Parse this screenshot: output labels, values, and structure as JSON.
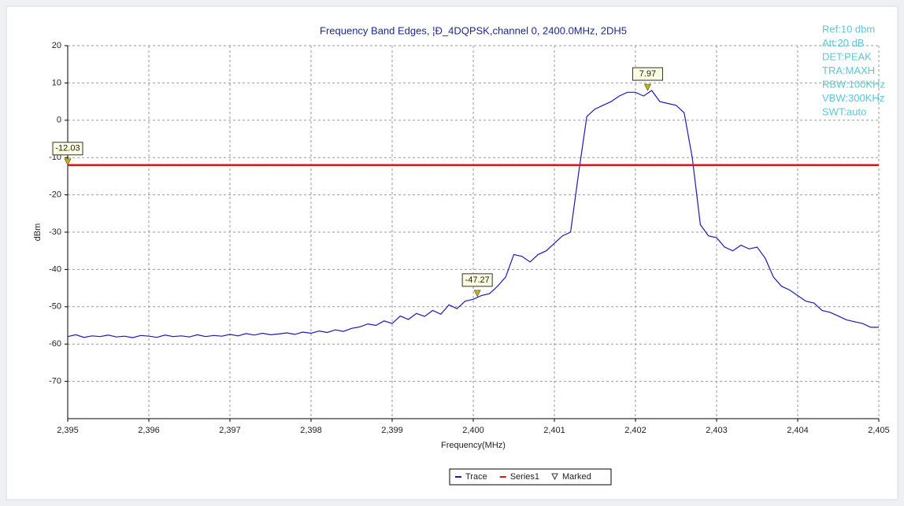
{
  "chart_data": {
    "type": "line",
    "title": "Frequency Band Edges, ¦Ð_4DQPSK,channel 0, 2400.0MHz, 2DH5",
    "x_label": "Frequency(MHz)",
    "y_label": "dBm",
    "annotations": [
      "Ref:10 dbm",
      "Att:20 dB",
      "DET:PEAK",
      "TRA:MAXH",
      "RBW:100KHz",
      "VBW:300KHz",
      "SWT:auto"
    ],
    "xlim": [
      2395,
      2405
    ],
    "ylim": [
      -80,
      20
    ],
    "xticks": [
      {
        "value": 2395,
        "label": "2,395"
      },
      {
        "value": 2396,
        "label": "2,396"
      },
      {
        "value": 2397,
        "label": "2,397"
      },
      {
        "value": 2398,
        "label": "2,398"
      },
      {
        "value": 2399,
        "label": "2,399"
      },
      {
        "value": 2400,
        "label": "2,400"
      },
      {
        "value": 2401,
        "label": "2,401"
      },
      {
        "value": 2402,
        "label": "2,402"
      },
      {
        "value": 2403,
        "label": "2,403"
      },
      {
        "value": 2404,
        "label": "2,404"
      },
      {
        "value": 2405,
        "label": "2,405"
      }
    ],
    "yticks": [
      20,
      10,
      0,
      -10,
      -20,
      -30,
      -40,
      -50,
      -60,
      -70
    ],
    "grid": true,
    "legend": "bottom",
    "series": [
      {
        "name": "Trace",
        "color": "#1a1ab8",
        "x": [
          2395.0,
          2395.1,
          2395.2,
          2395.3,
          2395.4,
          2395.5,
          2395.6,
          2395.7,
          2395.8,
          2395.9,
          2396.0,
          2396.1,
          2396.2,
          2396.3,
          2396.4,
          2396.5,
          2396.6,
          2396.7,
          2396.8,
          2396.9,
          2397.0,
          2397.1,
          2397.2,
          2397.3,
          2397.4,
          2397.5,
          2397.6,
          2397.7,
          2397.8,
          2397.9,
          2398.0,
          2398.1,
          2398.2,
          2398.3,
          2398.4,
          2398.5,
          2398.6,
          2398.7,
          2398.8,
          2398.9,
          2399.0,
          2399.1,
          2399.2,
          2399.3,
          2399.4,
          2399.5,
          2399.6,
          2399.7,
          2399.8,
          2399.9,
          2400.0,
          2400.1,
          2400.2,
          2400.3,
          2400.4,
          2400.5,
          2400.6,
          2400.7,
          2400.8,
          2400.9,
          2401.0,
          2401.1,
          2401.2,
          2401.3,
          2401.4,
          2401.5,
          2401.6,
          2401.7,
          2401.8,
          2401.9,
          2402.0,
          2402.1,
          2402.2,
          2402.3,
          2402.4,
          2402.5,
          2402.6,
          2402.7,
          2402.8,
          2402.9,
          2403.0,
          2403.1,
          2403.2,
          2403.3,
          2403.4,
          2403.5,
          2403.6,
          2403.7,
          2403.8,
          2403.9,
          2404.0,
          2404.1,
          2404.2,
          2404.3,
          2404.4,
          2404.5,
          2404.6,
          2404.7,
          2404.8,
          2404.9,
          2405.0
        ],
        "values": [
          -58,
          -57.5,
          -58.2,
          -57.8,
          -58,
          -57.6,
          -58.1,
          -57.9,
          -58.3,
          -57.7,
          -57.9,
          -58.2,
          -57.6,
          -58,
          -57.8,
          -58.1,
          -57.5,
          -58,
          -57.7,
          -57.9,
          -57.4,
          -57.8,
          -57.2,
          -57.6,
          -57.1,
          -57.5,
          -57.3,
          -57,
          -57.4,
          -56.8,
          -57.1,
          -56.5,
          -56.9,
          -56.2,
          -56.6,
          -55.8,
          -55.4,
          -54.6,
          -55,
          -53.8,
          -54.5,
          -52.5,
          -53.4,
          -51.8,
          -52.6,
          -51,
          -52,
          -49.5,
          -50.5,
          -48.5,
          -48,
          -47,
          -46.5,
          -44.5,
          -42,
          -36,
          -36.5,
          -38,
          -36,
          -35,
          -33,
          -31,
          -30,
          -14,
          1,
          3,
          4,
          5,
          6.5,
          7.5,
          7.5,
          6.5,
          7.97,
          5,
          4.5,
          4,
          2,
          -10,
          -28,
          -31,
          -31.5,
          -34,
          -35,
          -33.5,
          -34.5,
          -34,
          -37,
          -42,
          -44.5,
          -45.5,
          -47,
          -48.5,
          -49,
          -51,
          -51.5,
          -52.5,
          -53.5,
          -54,
          -54.5,
          -55.5,
          -55.5
        ]
      },
      {
        "name": "Series1",
        "color": "#d81818",
        "x": [
          2395,
          2405
        ],
        "values": [
          -12.03,
          -12.03
        ]
      },
      {
        "name": "Marked",
        "color": "#c8b400",
        "x": [
          2395,
          2400.05,
          2402.15
        ],
        "values": [
          -12.03,
          -47.27,
          7.97
        ]
      }
    ]
  }
}
